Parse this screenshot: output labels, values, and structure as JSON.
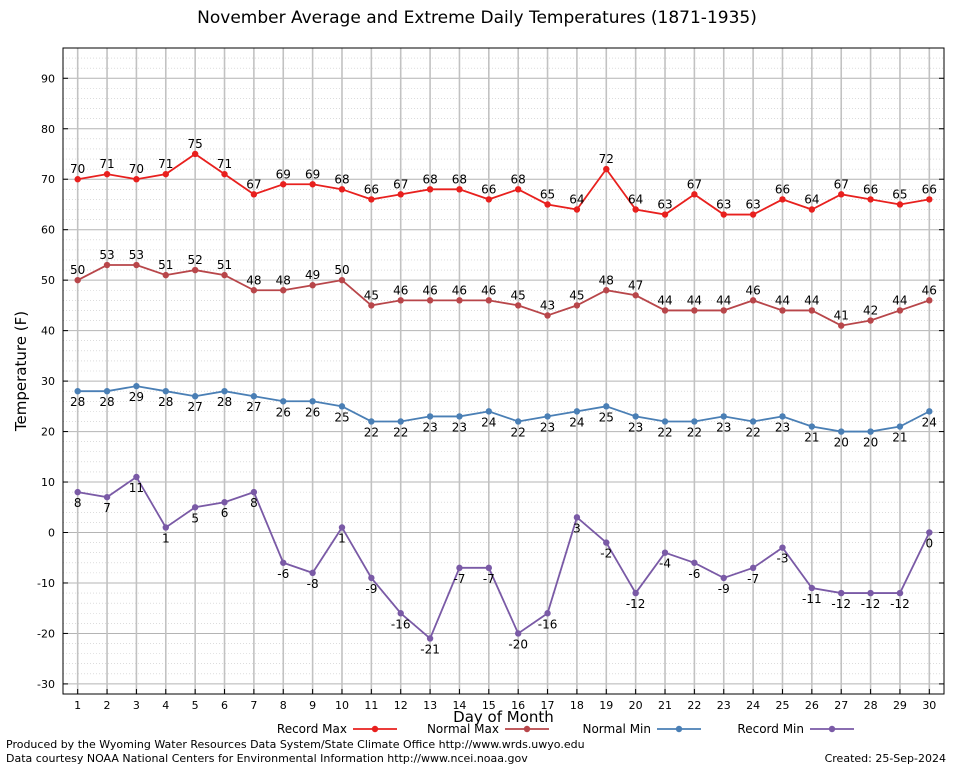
{
  "chart_data": {
    "type": "line",
    "title": "November Average and Extreme Daily Temperatures (1871-1935)",
    "xlabel": "Day of Month",
    "ylabel": "Temperature (F)",
    "ylim": [
      -32,
      96
    ],
    "yticks": [
      -30,
      -20,
      -10,
      0,
      10,
      20,
      30,
      40,
      50,
      60,
      70,
      80,
      90
    ],
    "x": [
      1,
      2,
      3,
      4,
      5,
      6,
      7,
      8,
      9,
      10,
      11,
      12,
      13,
      14,
      15,
      16,
      17,
      18,
      19,
      20,
      21,
      22,
      23,
      24,
      25,
      26,
      27,
      28,
      29,
      30
    ],
    "grid": true,
    "legend_position": "bottom",
    "series": [
      {
        "name": "Record Max",
        "color": "#e8201e",
        "label_position": "above",
        "values": [
          70,
          71,
          70,
          71,
          75,
          71,
          67,
          69,
          69,
          68,
          66,
          67,
          68,
          68,
          66,
          68,
          65,
          64,
          72,
          64,
          63,
          67,
          63,
          63,
          66,
          64,
          67,
          66,
          65,
          66
        ]
      },
      {
        "name": "Normal Max",
        "color": "#b8464a",
        "label_position": "above",
        "values": [
          50,
          53,
          53,
          51,
          52,
          51,
          48,
          48,
          49,
          50,
          45,
          46,
          46,
          46,
          46,
          45,
          43,
          45,
          48,
          47,
          44,
          44,
          44,
          46,
          44,
          44,
          41,
          42,
          44,
          46
        ]
      },
      {
        "name": "Normal Min",
        "color": "#4a7fb5",
        "label_position": "below",
        "values": [
          28,
          28,
          29,
          28,
          27,
          28,
          27,
          26,
          26,
          25,
          22,
          22,
          23,
          23,
          24,
          22,
          23,
          24,
          25,
          23,
          22,
          22,
          23,
          22,
          23,
          21,
          20,
          20,
          21,
          24
        ]
      },
      {
        "name": "Record Min",
        "color": "#7a5aa6",
        "label_position": "below",
        "values": [
          8,
          7,
          11,
          1,
          5,
          6,
          8,
          -6,
          -8,
          1,
          -9,
          -16,
          -21,
          -7,
          -7,
          -20,
          -16,
          3,
          -2,
          -12,
          -4,
          -6,
          -9,
          -7,
          -3,
          -11,
          -12,
          -12,
          -12,
          0
        ]
      }
    ]
  },
  "footer": {
    "produced_by": "Produced by the Wyoming Water Resources Data System/State Climate Office http://www.wrds.uwyo.edu",
    "courtesy": "Data courtesy NOAA National Centers for Environmental Information http://www.ncei.noaa.gov",
    "created": "Created:  25-Sep-2024"
  }
}
